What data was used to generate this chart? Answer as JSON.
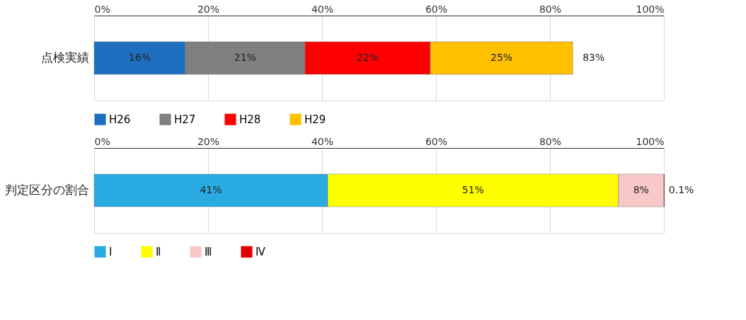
{
  "chart_data": [
    {
      "type": "bar",
      "orientation": "horizontal",
      "stacked": true,
      "categories": [
        "点検実績"
      ],
      "series": [
        {
          "name": "H26",
          "color": "#1f6fc0",
          "values": [
            16
          ],
          "value_labels": [
            "16%"
          ]
        },
        {
          "name": "H27",
          "color": "#808080",
          "values": [
            21
          ],
          "value_labels": [
            "21%"
          ]
        },
        {
          "name": "H28",
          "color": "#ff0000",
          "values": [
            22
          ],
          "value_labels": [
            "22%"
          ]
        },
        {
          "name": "H29",
          "color": "#ffc000",
          "values": [
            25
          ],
          "value_labels": [
            "25%"
          ]
        }
      ],
      "totals": [
        "83%"
      ],
      "xlim": [
        0,
        100
      ],
      "xticks": [
        {
          "value": 0,
          "label": "0%"
        },
        {
          "value": 20,
          "label": "20%"
        },
        {
          "value": 40,
          "label": "40%"
        },
        {
          "value": 60,
          "label": "60%"
        },
        {
          "value": 80,
          "label": "80%"
        },
        {
          "value": 100,
          "label": "100%"
        }
      ],
      "grid": "x",
      "legend": "bottom"
    },
    {
      "type": "bar",
      "orientation": "horizontal",
      "stacked": true,
      "categories": [
        "判定区分の割合"
      ],
      "series": [
        {
          "name": "Ⅰ",
          "color": "#29abe2",
          "values": [
            41
          ],
          "value_labels": [
            "41%"
          ]
        },
        {
          "name": "Ⅱ",
          "color": "#ffff00",
          "values": [
            51
          ],
          "value_labels": [
            "51%"
          ]
        },
        {
          "name": "Ⅲ",
          "color": "#f8c8c8",
          "values": [
            8
          ],
          "value_labels": [
            "8%"
          ]
        },
        {
          "name": "Ⅳ",
          "color": "#e00000",
          "values": [
            0.1
          ],
          "value_labels": [
            "0.1%"
          ]
        }
      ],
      "xlim": [
        0,
        100
      ],
      "xticks": [
        {
          "value": 0,
          "label": "0%"
        },
        {
          "value": 20,
          "label": "20%"
        },
        {
          "value": 40,
          "label": "40%"
        },
        {
          "value": 60,
          "label": "60%"
        },
        {
          "value": 80,
          "label": "80%"
        },
        {
          "value": 100,
          "label": "100%"
        }
      ],
      "grid": "x",
      "legend": "bottom"
    }
  ]
}
